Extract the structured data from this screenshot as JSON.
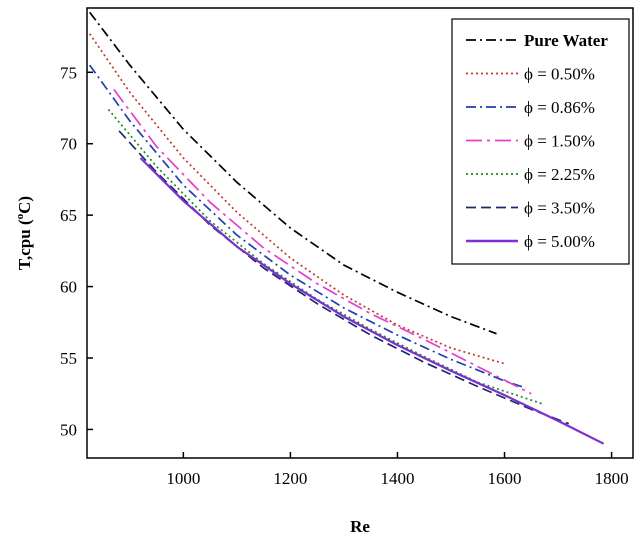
{
  "chart_data": {
    "type": "line",
    "xlabel": "Re",
    "ylabel": "T,cpu (°C)",
    "ylabel_parts": {
      "main": "T,cpu (",
      "sup": "o",
      "unit": "C)"
    },
    "xlim": [
      820,
      1840
    ],
    "ylim": [
      48,
      79.5
    ],
    "x_ticks": [
      1000,
      1200,
      1400,
      1600,
      1800
    ],
    "y_ticks": [
      50,
      55,
      60,
      65,
      70,
      75
    ],
    "grid": false,
    "legend": "top-right",
    "series": [
      {
        "name": "Pure Water",
        "color": "#000000",
        "dash": "dashdot",
        "x": [
          825,
          900,
          1000,
          1100,
          1200,
          1300,
          1400,
          1500,
          1585
        ],
        "y": [
          79.2,
          75.5,
          71.0,
          67.3,
          64.1,
          61.5,
          59.6,
          57.9,
          56.7
        ]
      },
      {
        "name": "ϕ = 0.50%",
        "color": "#c0392b",
        "dash": "dotted",
        "x": [
          825,
          900,
          1000,
          1100,
          1200,
          1300,
          1400,
          1500,
          1600
        ],
        "y": [
          77.7,
          73.6,
          69.0,
          65.2,
          62.0,
          59.4,
          57.3,
          55.7,
          54.6
        ]
      },
      {
        "name": "ϕ = 0.86%",
        "color": "#1f3fae",
        "dash": "dashdot",
        "x": [
          825,
          900,
          1000,
          1100,
          1200,
          1300,
          1400,
          1500,
          1600,
          1640
        ],
        "y": [
          75.5,
          71.6,
          67.1,
          63.6,
          60.8,
          58.5,
          56.6,
          54.9,
          53.4,
          52.9
        ]
      },
      {
        "name": "ϕ = 1.50%",
        "color": "#e23fd1",
        "dash": "longdashdot",
        "x": [
          870,
          950,
          1050,
          1150,
          1250,
          1350,
          1450,
          1550,
          1650
        ],
        "y": [
          73.8,
          69.8,
          65.9,
          62.7,
          60.2,
          58.1,
          56.3,
          54.4,
          52.5
        ]
      },
      {
        "name": "ϕ = 2.25%",
        "color": "#1e8a1e",
        "dash": "dotted",
        "x": [
          860,
          950,
          1050,
          1150,
          1250,
          1350,
          1450,
          1550,
          1670
        ],
        "y": [
          72.4,
          68.4,
          64.6,
          61.6,
          59.1,
          57.0,
          55.1,
          53.3,
          51.8
        ]
      },
      {
        "name": "ϕ = 3.50%",
        "color": "#1a2a6c",
        "dash": "dashed",
        "x": [
          880,
          950,
          1050,
          1150,
          1250,
          1350,
          1450,
          1550,
          1650,
          1720
        ],
        "y": [
          70.9,
          68.0,
          64.3,
          61.3,
          58.8,
          56.6,
          54.7,
          53.0,
          51.4,
          50.4
        ]
      },
      {
        "name": "ϕ = 5.00%",
        "color": "#7d2fd0",
        "dash": "solid",
        "x": [
          920,
          1000,
          1100,
          1200,
          1300,
          1400,
          1500,
          1600,
          1700,
          1785
        ],
        "y": [
          69.0,
          66.0,
          62.8,
          60.2,
          57.9,
          55.9,
          54.1,
          52.4,
          50.6,
          49.0
        ]
      }
    ]
  }
}
